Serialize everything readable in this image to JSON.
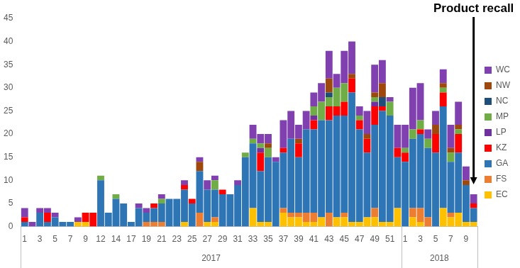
{
  "chart_data": {
    "type": "bar",
    "stacked": true,
    "grid": false,
    "legend": "right",
    "annotation": "Product recall",
    "categories": [
      "1",
      null,
      "3",
      null,
      "5",
      null,
      "7",
      null,
      "9",
      null,
      "12",
      null,
      "14",
      null,
      "17",
      null,
      "19",
      null,
      "21",
      null,
      "23",
      null,
      "25",
      null,
      "27",
      null,
      "29",
      null,
      "31",
      null,
      "33",
      null,
      "35",
      null,
      "37",
      null,
      "39",
      null,
      "41",
      null,
      "43",
      null,
      "45",
      null,
      "47",
      null,
      "49",
      null,
      "51",
      null,
      "1",
      null,
      "3",
      null,
      "5",
      null,
      "7",
      null,
      "9",
      null
    ],
    "x_groups": [
      "2017",
      "2017",
      "2017",
      "2017",
      "2017",
      "2017",
      "2017",
      "2017",
      "2017",
      "2017",
      "2017",
      "2017",
      "2017",
      "2017",
      "2017",
      "2017",
      "2017",
      "2017",
      "2017",
      "2017",
      "2017",
      "2017",
      "2017",
      "2017",
      "2017",
      "2017",
      "2017",
      "2017",
      "2017",
      "2017",
      "2017",
      "2017",
      "2017",
      "2017",
      "2017",
      "2017",
      "2017",
      "2017",
      "2017",
      "2017",
      "2017",
      "2017",
      "2017",
      "2017",
      "2017",
      "2017",
      "2017",
      "2017",
      "2017",
      "2017",
      "2018",
      "2018",
      "2018",
      "2018",
      "2018",
      "2018",
      "2018",
      "2018",
      "2018",
      "2018"
    ],
    "ylim": [
      0,
      45
    ],
    "yticks": [
      0,
      5,
      10,
      15,
      20,
      25,
      30,
      35,
      40,
      45
    ],
    "series": [
      {
        "name": "EC",
        "color": "#FFC000",
        "values": [
          0,
          0,
          0,
          0,
          0,
          0,
          0,
          1,
          1,
          0,
          0,
          0,
          0,
          0,
          0,
          0,
          0,
          0,
          0,
          0,
          0,
          1,
          0,
          0,
          1,
          1,
          0,
          0,
          0,
          0,
          4,
          1,
          1,
          0,
          3,
          2,
          2,
          1,
          1,
          2,
          0,
          2,
          2,
          1,
          1,
          2,
          2,
          1,
          1,
          4,
          0,
          2,
          1,
          0,
          0,
          4,
          2,
          3,
          1,
          1
        ]
      },
      {
        "name": "FS",
        "color": "#ED7D31",
        "values": [
          0,
          0,
          0,
          0,
          0,
          0,
          0,
          0,
          0,
          0,
          0,
          0,
          0,
          0,
          0,
          0,
          1,
          1,
          1,
          0,
          0,
          0,
          0,
          3,
          0,
          1,
          0,
          0,
          0,
          0,
          0,
          0,
          0,
          0,
          1,
          1,
          1,
          2,
          2,
          0,
          3,
          0,
          1,
          0,
          0,
          0,
          2,
          0,
          0,
          0,
          0,
          2,
          3,
          2,
          0,
          0,
          1,
          0,
          0,
          0
        ]
      },
      {
        "name": "GA",
        "color": "#2E75B6",
        "values": [
          1,
          0,
          3,
          1,
          2,
          1,
          1,
          0,
          0,
          0,
          10,
          3,
          6,
          5,
          1,
          4,
          2,
          3,
          4,
          6,
          6,
          7,
          5,
          9,
          7,
          6,
          7,
          7,
          9,
          15,
          14,
          11,
          14,
          14,
          12,
          16,
          12,
          18,
          18,
          21,
          20,
          22,
          21,
          28,
          20,
          14,
          18,
          24,
          23,
          11,
          14,
          15,
          16,
          15,
          16,
          22,
          11,
          13,
          8,
          3
        ]
      },
      {
        "name": "KZ",
        "color": "#FF0000",
        "values": [
          1,
          0,
          0,
          2,
          0,
          0,
          0,
          0,
          2,
          3,
          0,
          0,
          0,
          0,
          0,
          0,
          0,
          1,
          0,
          0,
          0,
          1,
          1,
          0,
          0,
          0,
          1,
          0,
          0,
          0,
          0,
          4,
          0,
          0,
          1,
          0,
          3,
          0,
          2,
          0,
          3,
          2,
          3,
          3,
          2,
          3,
          4,
          1,
          0,
          2,
          2,
          0,
          1,
          0,
          4,
          3,
          0,
          4,
          0,
          1
        ]
      },
      {
        "name": "LP",
        "color": "#7030A0",
        "values": [
          0,
          0,
          0,
          0,
          0,
          0,
          0,
          0,
          0,
          0,
          0,
          0,
          0,
          0,
          0,
          0,
          0,
          0,
          0,
          0,
          0,
          0,
          0,
          0,
          0,
          0,
          0,
          0,
          0,
          0,
          0,
          1,
          0,
          0,
          0,
          0,
          0,
          0,
          1,
          0,
          0,
          0,
          0,
          0,
          0,
          0,
          1,
          0,
          0,
          0,
          0,
          0,
          0,
          0,
          0,
          0,
          0,
          0,
          0,
          0
        ]
      },
      {
        "name": "MP",
        "color": "#70AD47",
        "values": [
          0,
          0,
          0,
          0,
          0,
          0,
          0,
          0,
          0,
          0,
          1,
          0,
          1,
          0,
          0,
          0,
          0,
          0,
          1,
          0,
          0,
          0,
          0,
          0,
          0,
          2,
          0,
          0,
          0,
          1,
          1,
          1,
          2,
          0,
          0,
          0,
          0,
          0,
          2,
          4,
          2,
          4,
          4,
          0,
          1,
          0,
          1,
          0,
          3,
          0,
          1,
          2,
          2,
          2,
          0,
          1,
          2,
          1,
          0,
          0
        ]
      },
      {
        "name": "NC",
        "color": "#1F4E79",
        "values": [
          0,
          0,
          0,
          0,
          0,
          0,
          0,
          0,
          0,
          0,
          0,
          0,
          0,
          0,
          0,
          0,
          0,
          0,
          0,
          0,
          0,
          0,
          0,
          0,
          0,
          0,
          0,
          0,
          0,
          0,
          0,
          0,
          0,
          0,
          0,
          0,
          0,
          0,
          0,
          0,
          1,
          0,
          0,
          0,
          0,
          0,
          0,
          2,
          0,
          0,
          0,
          0,
          0,
          0,
          0,
          0,
          0,
          0,
          0,
          0
        ]
      },
      {
        "name": "NW",
        "color": "#9E480E",
        "values": [
          0,
          0,
          0,
          0,
          0,
          0,
          0,
          0,
          0,
          0,
          0,
          0,
          0,
          0,
          0,
          0,
          0,
          0,
          0,
          0,
          0,
          0,
          0,
          2,
          0,
          0,
          0,
          0,
          0,
          0,
          0,
          0,
          1,
          0,
          0,
          0,
          1,
          0,
          0,
          0,
          3,
          0,
          0,
          1,
          0,
          1,
          1,
          3,
          0,
          0,
          0,
          0,
          0,
          0,
          2,
          1,
          1,
          1,
          1,
          0
        ]
      },
      {
        "name": "WC",
        "color": "#8040B0",
        "values": [
          2,
          1,
          1,
          1,
          1,
          0,
          0,
          1,
          0,
          0,
          0,
          0,
          0,
          0,
          0,
          1,
          1,
          0,
          1,
          0,
          0,
          1,
          0,
          1,
          2,
          1,
          0,
          0,
          1,
          0,
          3,
          2,
          2,
          1,
          6,
          6,
          3,
          4,
          3,
          4,
          6,
          3,
          7,
          7,
          2,
          5,
          6,
          5,
          1,
          5,
          5,
          9,
          8,
          2,
          3,
          3,
          5,
          5,
          3,
          2
        ]
      }
    ]
  }
}
